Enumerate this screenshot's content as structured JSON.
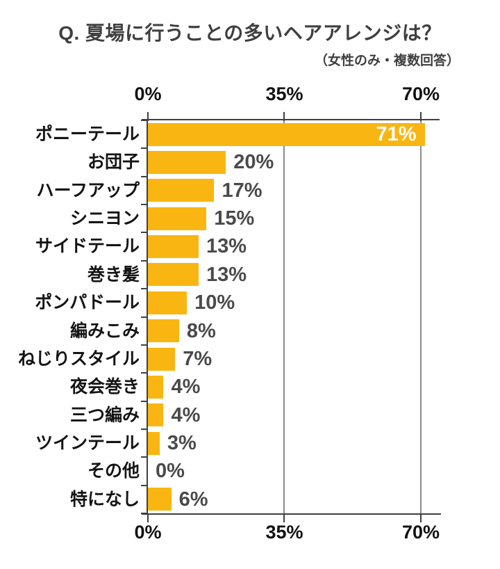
{
  "header": {
    "title": "Q. 夏場に行うことの多いヘアアレンジは？",
    "subtitle": "（女性のみ・複数回答）"
  },
  "chart_data": {
    "type": "bar",
    "orientation": "horizontal",
    "title": "Q. 夏場に行うことの多いヘアアレンジは？",
    "subtitle": "（女性のみ・複数回答）",
    "categories": [
      "ポニーテール",
      "お団子",
      "ハーフアップ",
      "シニヨン",
      "サイドテール",
      "巻き髪",
      "ポンパドール",
      "編みこみ",
      "ねじりスタイル",
      "夜会巻き",
      "三つ編み",
      "ツインテール",
      "その他",
      "特になし"
    ],
    "values": [
      71,
      20,
      17,
      15,
      13,
      13,
      10,
      8,
      7,
      4,
      4,
      3,
      0,
      6
    ],
    "value_labels": [
      "71%",
      "20%",
      "17%",
      "15%",
      "13%",
      "13%",
      "10%",
      "8%",
      "7%",
      "4%",
      "4%",
      "3%",
      "0%",
      "6%"
    ],
    "axis": {
      "min": 0,
      "max": 70,
      "unit": "%",
      "ticks": [
        {
          "label": "0%",
          "value": 0
        },
        {
          "label": "35%",
          "value": 35
        },
        {
          "label": "70%",
          "value": 70
        }
      ],
      "tick_positions": "top and bottom",
      "grid": "vertical lines at 35% and 70%"
    },
    "first_bar_label_placement": "inside-right, white",
    "colors": {
      "bar": "#F9B612",
      "grid_line": "#8A8A8A",
      "axis_line": "#3F3F3F",
      "category_label": "#141414",
      "value_label": "#4A4A4A",
      "value_label_inside": "#FFFFFF",
      "axis_tick_label": "#111111",
      "title": "#3F3F3F",
      "background": "#FFFFFF"
    }
  }
}
